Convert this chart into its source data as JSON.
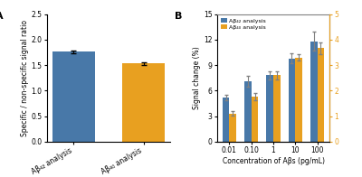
{
  "panel_a": {
    "categories": [
      "Aβ₄₂ analysis",
      "Aβ₄₀ analysis"
    ],
    "values": [
      1.76,
      1.53
    ],
    "errors": [
      0.03,
      0.03
    ],
    "bar_colors": [
      "#4878a8",
      "#e8a020"
    ],
    "ylabel": "Specific / non-specific signal ratio",
    "ylim": [
      0,
      2.5
    ],
    "yticks": [
      0.0,
      0.5,
      1.0,
      1.5,
      2.0,
      2.5
    ],
    "label": "A"
  },
  "panel_b": {
    "concentrations": [
      0.01,
      0.1,
      1,
      10,
      100
    ],
    "xtick_labels": [
      "0.01",
      "0.10",
      "1",
      "10",
      "100"
    ],
    "ab42_values": [
      5.2,
      7.1,
      7.8,
      9.8,
      11.8
    ],
    "ab42_errors": [
      0.35,
      0.6,
      0.45,
      0.6,
      1.1
    ],
    "ab40_values": [
      3.3,
      5.3,
      7.8,
      9.9,
      11.0
    ],
    "ab40_errors": [
      0.25,
      0.4,
      0.45,
      0.35,
      0.7
    ],
    "ab42_color": "#4878a8",
    "ab40_color": "#e8a020",
    "ylabel_left": "Signal change (%)",
    "xlabel": "Concentration of Aβs (pg/mL)",
    "ylim_left": [
      0,
      15
    ],
    "ylim_right": [
      0,
      5
    ],
    "yticks_left": [
      0,
      3,
      6,
      9,
      12,
      15
    ],
    "yticks_right": [
      0,
      1,
      2,
      3,
      4,
      5
    ],
    "label": "B",
    "legend_ab42": "Aβ₄₂ analysis",
    "legend_ab40": "Aβ₄₀ analysis"
  },
  "background_color": "#ffffff"
}
